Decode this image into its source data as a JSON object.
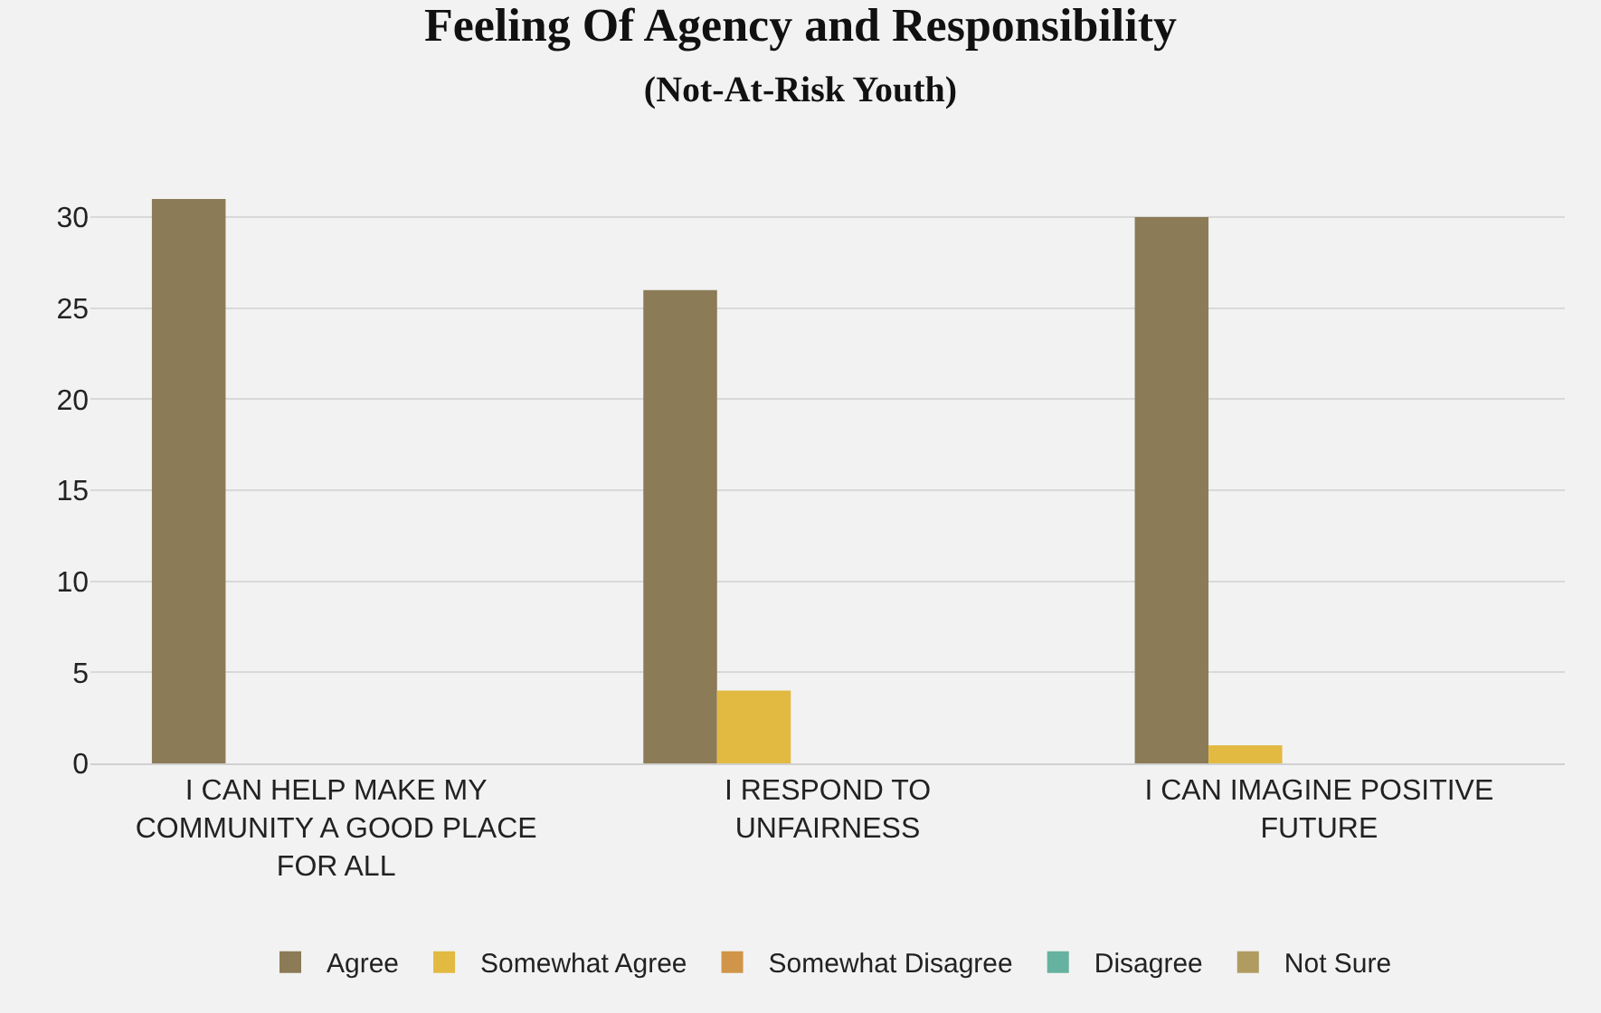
{
  "chart_data": {
    "type": "bar",
    "title": "Feeling Of Agency and Responsibility",
    "subtitle": "(Not-At-Risk Youth)",
    "categories": [
      "I CAN HELP MAKE MY COMMUNITY A GOOD PLACE FOR ALL",
      "I RESPOND TO UNFAIRNESS",
      "I CAN IMAGINE POSITIVE FUTURE"
    ],
    "series": [
      {
        "name": "Agree",
        "color": "#8b7b56",
        "values": [
          31,
          26,
          30
        ]
      },
      {
        "name": "Somewhat Agree",
        "color": "#e2ba41",
        "values": [
          0,
          4,
          1
        ]
      },
      {
        "name": "Somewhat Disagree",
        "color": "#d09548",
        "values": [
          0,
          0,
          0
        ]
      },
      {
        "name": "Disagree",
        "color": "#66b2a0",
        "values": [
          0,
          0,
          0
        ]
      },
      {
        "name": "Not Sure",
        "color": "#b09b61",
        "values": [
          0,
          0,
          0
        ]
      }
    ],
    "ylim": [
      0,
      31
    ],
    "yticks": [
      0,
      5,
      10,
      15,
      20,
      25,
      30
    ],
    "grid": "y",
    "legend": "bottom"
  }
}
